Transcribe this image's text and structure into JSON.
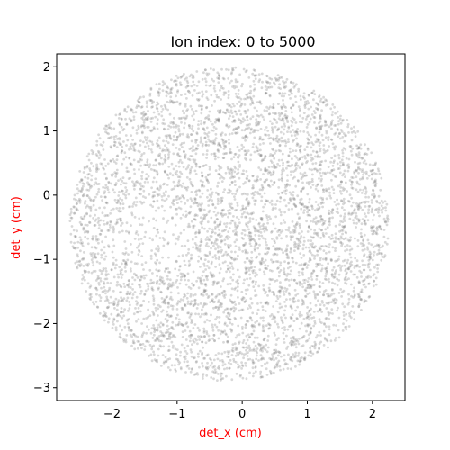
{
  "chart_data": {
    "type": "scatter",
    "title": "Ion index: 0 to 5000",
    "xlabel": "det_x (cm)",
    "ylabel": "det_y (cm)",
    "label_color": "#ff0000",
    "point_color": "#808080",
    "xlim": [
      -2.85,
      2.5
    ],
    "ylim": [
      -3.2,
      2.2
    ],
    "xticks": [
      -2,
      -1,
      0,
      1,
      2
    ],
    "yticks": [
      -3,
      -2,
      -1,
      0,
      1,
      2
    ],
    "grid": false,
    "legend": "none",
    "point_count": 5000,
    "distribution": {
      "shape": "disk",
      "center": [
        -0.2,
        -0.45
      ],
      "radius": 2.45,
      "sparse_spot_center": [
        -1.3,
        -0.6
      ],
      "sparse_spot_radius": 0.55
    }
  }
}
